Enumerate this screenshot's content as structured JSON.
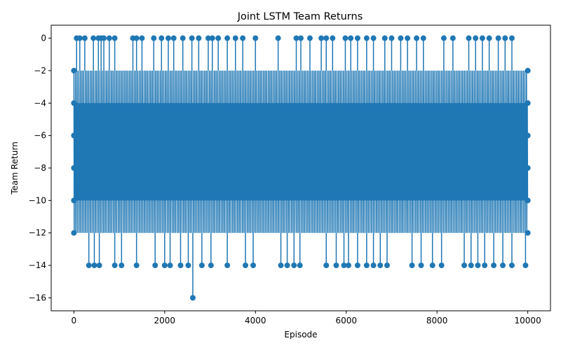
{
  "chart_data": {
    "type": "line",
    "title": "Joint LSTM Team Returns",
    "xlabel": "Episode",
    "ylabel": "Team Return",
    "xlim": [
      -500,
      10500
    ],
    "ylim": [
      -16.8,
      0.8
    ],
    "xticks": [
      0,
      2000,
      4000,
      6000,
      8000,
      10000
    ],
    "yticks": [
      0,
      -2,
      -4,
      -6,
      -8,
      -10,
      -12,
      -14,
      -16
    ],
    "xtick_labels": [
      "0",
      "2000",
      "4000",
      "6000",
      "8000",
      "10000"
    ],
    "ytick_labels": [
      "0",
      "−2",
      "−4",
      "−6",
      "−8",
      "−10",
      "−12",
      "−14",
      "−16"
    ],
    "grid": false,
    "marker": "circle",
    "color": "#1f77b4",
    "series": [
      {
        "episodes": [
          0,
          10000
        ],
        "values_cycle": [
          -2,
          -12,
          -4,
          -10,
          -6,
          -8,
          -2,
          -12,
          -8,
          -4,
          -10,
          -6
        ],
        "outliers": [
          {
            "x": 2620,
            "y": -16
          },
          {
            "x": 60,
            "y": 0
          },
          {
            "x": 130,
            "y": 0
          },
          {
            "x": 240,
            "y": 0
          },
          {
            "x": 430,
            "y": 0
          },
          {
            "x": 540,
            "y": 0
          },
          {
            "x": 600,
            "y": 0
          },
          {
            "x": 660,
            "y": 0
          },
          {
            "x": 780,
            "y": 0
          },
          {
            "x": 900,
            "y": 0
          },
          {
            "x": 1300,
            "y": 0
          },
          {
            "x": 1380,
            "y": 0
          },
          {
            "x": 1500,
            "y": 0
          },
          {
            "x": 1760,
            "y": 0
          },
          {
            "x": 1930,
            "y": 0
          },
          {
            "x": 2080,
            "y": 0
          },
          {
            "x": 2200,
            "y": 0
          },
          {
            "x": 2400,
            "y": 0
          },
          {
            "x": 2600,
            "y": 0
          },
          {
            "x": 2750,
            "y": 0
          },
          {
            "x": 2960,
            "y": 0
          },
          {
            "x": 3050,
            "y": 0
          },
          {
            "x": 3180,
            "y": 0
          },
          {
            "x": 3380,
            "y": 0
          },
          {
            "x": 3560,
            "y": 0
          },
          {
            "x": 3720,
            "y": 0
          },
          {
            "x": 4000,
            "y": 0
          },
          {
            "x": 4500,
            "y": 0
          },
          {
            "x": 4900,
            "y": 0
          },
          {
            "x": 5000,
            "y": 0
          },
          {
            "x": 5200,
            "y": 0
          },
          {
            "x": 5450,
            "y": 0
          },
          {
            "x": 5560,
            "y": 0
          },
          {
            "x": 5700,
            "y": 0
          },
          {
            "x": 5980,
            "y": 0
          },
          {
            "x": 6100,
            "y": 0
          },
          {
            "x": 6250,
            "y": 0
          },
          {
            "x": 6450,
            "y": 0
          },
          {
            "x": 6600,
            "y": 0
          },
          {
            "x": 6850,
            "y": 0
          },
          {
            "x": 7000,
            "y": 0
          },
          {
            "x": 7200,
            "y": 0
          },
          {
            "x": 7350,
            "y": 0
          },
          {
            "x": 7550,
            "y": 0
          },
          {
            "x": 7700,
            "y": 0
          },
          {
            "x": 8150,
            "y": 0
          },
          {
            "x": 8350,
            "y": 0
          },
          {
            "x": 8700,
            "y": 0
          },
          {
            "x": 8850,
            "y": 0
          },
          {
            "x": 9000,
            "y": 0
          },
          {
            "x": 9150,
            "y": 0
          },
          {
            "x": 9350,
            "y": 0
          },
          {
            "x": 9500,
            "y": 0
          },
          {
            "x": 9650,
            "y": 0
          },
          {
            "x": 330,
            "y": -14
          },
          {
            "x": 450,
            "y": -14
          },
          {
            "x": 560,
            "y": -14
          },
          {
            "x": 900,
            "y": -14
          },
          {
            "x": 1050,
            "y": -14
          },
          {
            "x": 1380,
            "y": -14
          },
          {
            "x": 1790,
            "y": -14
          },
          {
            "x": 2000,
            "y": -14
          },
          {
            "x": 2120,
            "y": -14
          },
          {
            "x": 2350,
            "y": -14
          },
          {
            "x": 2520,
            "y": -14
          },
          {
            "x": 2820,
            "y": -14
          },
          {
            "x": 3020,
            "y": -14
          },
          {
            "x": 3380,
            "y": -14
          },
          {
            "x": 3780,
            "y": -14
          },
          {
            "x": 3950,
            "y": -14
          },
          {
            "x": 4560,
            "y": -14
          },
          {
            "x": 4700,
            "y": -14
          },
          {
            "x": 4850,
            "y": -14
          },
          {
            "x": 4980,
            "y": -14
          },
          {
            "x": 5560,
            "y": -14
          },
          {
            "x": 5780,
            "y": -14
          },
          {
            "x": 5950,
            "y": -14
          },
          {
            "x": 6050,
            "y": -14
          },
          {
            "x": 6250,
            "y": -14
          },
          {
            "x": 6450,
            "y": -14
          },
          {
            "x": 6600,
            "y": -14
          },
          {
            "x": 6750,
            "y": -14
          },
          {
            "x": 6900,
            "y": -14
          },
          {
            "x": 7450,
            "y": -14
          },
          {
            "x": 7650,
            "y": -14
          },
          {
            "x": 7900,
            "y": -14
          },
          {
            "x": 8100,
            "y": -14
          },
          {
            "x": 8600,
            "y": -14
          },
          {
            "x": 8750,
            "y": -14
          },
          {
            "x": 8900,
            "y": -14
          },
          {
            "x": 9050,
            "y": -14
          },
          {
            "x": 9250,
            "y": -14
          },
          {
            "x": 9450,
            "y": -14
          },
          {
            "x": 9650,
            "y": -14
          },
          {
            "x": 9950,
            "y": -14
          }
        ]
      }
    ]
  }
}
